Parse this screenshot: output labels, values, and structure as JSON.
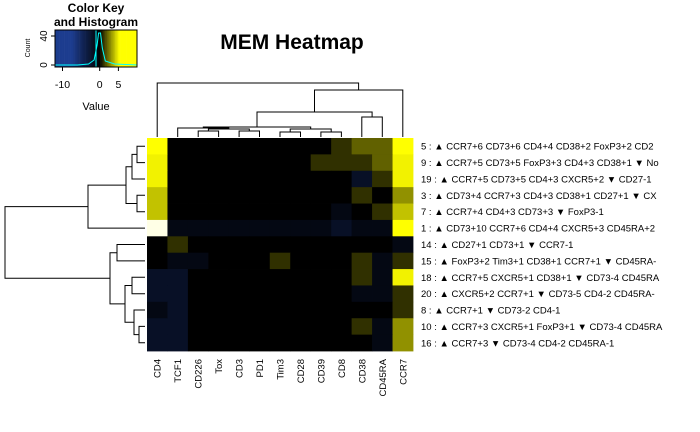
{
  "chart_data": {
    "type": "heatmap",
    "title": "MEM Heatmap",
    "columns": [
      "CD4",
      "TCF1",
      "CD226",
      "Tox",
      "CD3",
      "PD1",
      "Tim3",
      "CD28",
      "CD39",
      "CD8",
      "CD38",
      "CD45RA",
      "CCR7"
    ],
    "rows": [
      "5 : ▲ CCR7+6 CD73+6 CD4+4 CD38+2 FoxP3+2 CD2",
      "9 : ▲ CCR7+5 CD73+5 FoxP3+3 CD4+3 CD38+1 ▼ No",
      "19 : ▲ CCR7+5 CD73+5 CD4+3 CXCR5+2 ▼ CD27-1",
      "3 : ▲ CD73+4 CCR7+3 CD4+3 CD38+1 CD27+1 ▼ CX",
      "7 : ▲ CCR7+4 CD4+3 CD73+3 ▼ FoxP3-1",
      "1 : ▲ CD73+10 CCR7+6 CD4+4 CXCR5+3 CD45RA+2",
      "14 : ▲ CD27+1 CD73+1 ▼ CCR7-1",
      "15 : ▲ FoxP3+2 Tim3+1 CD38+1 CCR7+1 ▼ CD45RA-",
      "18 : ▲ CCR7+5 CXCR5+1 CD38+1 ▼ CD73-4 CD45RA",
      "20 : ▲ CXCR5+2 CCR7+1 ▼ CD73-5 CD4-2 CD45RA-",
      "8 : ▲ CCR7+1 ▼ CD73-2 CD4-1",
      "10 : ▲ CCR7+3 CXCR5+1 FoxP3+1 ▼ CD73-4 CD45RA",
      "16 : ▲ CCR7+3 ▼ CD73-4 CD4-2 CD45RA-1"
    ],
    "values": [
      [
        6,
        0,
        0,
        0,
        0,
        0,
        0,
        0,
        0,
        1,
        2,
        2,
        6
      ],
      [
        5,
        0,
        0,
        0,
        0,
        0,
        0,
        0,
        1,
        1,
        1,
        2,
        5
      ],
      [
        5,
        0,
        0,
        0,
        0,
        0,
        0,
        0,
        0,
        0,
        -2,
        1,
        5
      ],
      [
        4,
        0,
        0,
        0,
        0,
        0,
        0,
        0,
        0,
        0,
        1,
        0,
        3
      ],
      [
        4,
        0,
        0,
        0,
        0,
        0,
        0,
        0,
        0,
        -1,
        0,
        1,
        4
      ],
      [
        10,
        -1,
        -1,
        -1,
        -1,
        -1,
        -1,
        -1,
        -1,
        -2,
        -1,
        -1,
        6
      ],
      [
        0,
        1,
        0,
        0,
        0,
        0,
        0,
        0,
        0,
        0,
        0,
        0,
        -1
      ],
      [
        0,
        -1,
        -1,
        0,
        0,
        0,
        1,
        0,
        0,
        0,
        1,
        -1,
        1
      ],
      [
        -2,
        -2,
        0,
        0,
        0,
        0,
        0,
        0,
        0,
        0,
        1,
        -1,
        5
      ],
      [
        -2,
        -2,
        0,
        0,
        0,
        0,
        0,
        0,
        0,
        0,
        -1,
        -1,
        1
      ],
      [
        -1,
        -2,
        0,
        0,
        0,
        0,
        0,
        0,
        0,
        0,
        0,
        0,
        1
      ],
      [
        -2,
        -2,
        0,
        0,
        0,
        0,
        0,
        0,
        0,
        0,
        1,
        -1,
        3
      ],
      [
        -2,
        -2,
        0,
        0,
        0,
        0,
        0,
        0,
        0,
        0,
        0,
        -1,
        3
      ]
    ],
    "color_key": {
      "title_line1": "Color Key",
      "title_line2": "and Histogram",
      "xlabel": "Value",
      "ylabel": "Count",
      "x_ticks": [
        "-10",
        "0",
        "5"
      ],
      "y_ticks": [
        "0",
        "40"
      ],
      "range": [
        -12,
        10
      ],
      "low_color": "#1d3d8f",
      "mid_color": "#000000",
      "high_color": "#ffff00"
    }
  }
}
